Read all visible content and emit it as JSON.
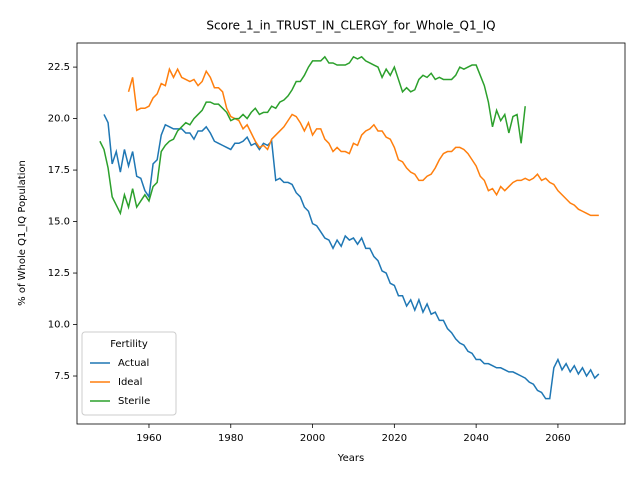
{
  "chart_data": {
    "type": "line",
    "title": "Score_1_in_TRUST_IN_CLERGY_for_Whole_Q1_IQ",
    "x_label": "Years",
    "y_label": "% of Whole Q1_IQ Population",
    "legend_title": "Fertility",
    "legend_position": "lower left",
    "grid": false,
    "x": [
      1948,
      1949,
      1950,
      1951,
      1952,
      1953,
      1954,
      1955,
      1956,
      1957,
      1958,
      1959,
      1960,
      1961,
      1962,
      1963,
      1964,
      1965,
      1966,
      1967,
      1968,
      1969,
      1970,
      1971,
      1972,
      1973,
      1974,
      1975,
      1976,
      1977,
      1978,
      1979,
      1980,
      1981,
      1982,
      1983,
      1984,
      1985,
      1986,
      1987,
      1988,
      1989,
      1990,
      1991,
      1992,
      1993,
      1994,
      1995,
      1996,
      1997,
      1998,
      1999,
      2000,
      2001,
      2002,
      2003,
      2004,
      2005,
      2006,
      2007,
      2008,
      2009,
      2010,
      2011,
      2012,
      2013,
      2014,
      2015,
      2016,
      2017,
      2018,
      2019,
      2020,
      2021,
      2022,
      2023,
      2024,
      2025,
      2026,
      2027,
      2028,
      2029,
      2030,
      2031,
      2032,
      2033,
      2034,
      2035,
      2036,
      2037,
      2038,
      2039,
      2040,
      2041,
      2042,
      2043,
      2044,
      2045,
      2046,
      2047,
      2048,
      2049,
      2050,
      2051,
      2052,
      2053,
      2054,
      2055,
      2056,
      2057,
      2058,
      2059,
      2060,
      2061,
      2062,
      2063,
      2064,
      2065,
      2066,
      2067,
      2068,
      2069,
      2070
    ],
    "xlim": [
      1942.4,
      2076.4
    ],
    "xticks": [
      1960,
      1980,
      2000,
      2020,
      2040,
      2060
    ],
    "ylim": [
      5.17,
      23.67
    ],
    "yticks": [
      {
        "value": 7.5,
        "label": "7.5"
      },
      {
        "value": 10,
        "label": "10.0"
      },
      {
        "value": 12.5,
        "label": "12.5"
      },
      {
        "value": 15,
        "label": "15.0"
      },
      {
        "value": 17.5,
        "label": "17.5"
      },
      {
        "value": 20,
        "label": "20.0"
      },
      {
        "value": 22.5,
        "label": "22.5"
      }
    ],
    "series": [
      {
        "name": "Actual",
        "color": "#1f77b4",
        "values": [
          null,
          20.2,
          19.8,
          17.8,
          18.4,
          17.4,
          18.5,
          17.7,
          18.4,
          17.2,
          17.1,
          16.5,
          16.2,
          17.8,
          18.0,
          19.2,
          19.7,
          19.6,
          19.5,
          19.5,
          19.5,
          19.3,
          19.3,
          19.0,
          19.4,
          19.4,
          19.6,
          19.3,
          18.9,
          18.8,
          18.7,
          18.6,
          18.5,
          18.8,
          18.8,
          18.9,
          19.1,
          18.7,
          18.8,
          18.5,
          18.8,
          18.7,
          18.9,
          17.0,
          17.1,
          16.9,
          16.9,
          16.8,
          16.4,
          16.2,
          15.7,
          15.5,
          14.9,
          14.8,
          14.5,
          14.2,
          14.1,
          13.7,
          14.1,
          13.8,
          14.3,
          14.1,
          14.2,
          13.9,
          14.2,
          13.7,
          13.7,
          13.3,
          13.1,
          12.6,
          12.5,
          12.0,
          11.9,
          11.4,
          11.4,
          10.9,
          11.2,
          10.7,
          11.2,
          10.6,
          11.0,
          10.5,
          10.6,
          10.2,
          10.2,
          9.8,
          9.6,
          9.3,
          9.1,
          9.0,
          8.7,
          8.6,
          8.3,
          8.3,
          8.1,
          8.1,
          8.0,
          7.9,
          7.9,
          7.8,
          7.7,
          7.7,
          7.6,
          7.5,
          7.4,
          7.2,
          7.1,
          6.8,
          6.7,
          6.4,
          6.4,
          7.9,
          8.3,
          7.8,
          8.1,
          7.7,
          8.0,
          7.6,
          7.9,
          7.5,
          7.8,
          7.4,
          7.6
        ]
      },
      {
        "name": "Ideal",
        "color": "#ff7f0e",
        "values": [
          null,
          null,
          null,
          null,
          null,
          null,
          null,
          21.3,
          22.0,
          20.4,
          20.5,
          20.5,
          20.6,
          21.0,
          21.2,
          21.7,
          21.6,
          22.4,
          22.0,
          22.4,
          22.0,
          21.9,
          21.8,
          21.9,
          21.6,
          21.8,
          22.3,
          22.0,
          21.5,
          21.5,
          21.3,
          20.5,
          20.1,
          20.0,
          19.9,
          19.5,
          19.7,
          19.3,
          18.9,
          18.6,
          18.7,
          18.5,
          19.0,
          19.2,
          19.4,
          19.6,
          19.9,
          20.2,
          20.1,
          19.8,
          19.4,
          19.8,
          19.2,
          19.5,
          19.5,
          19.0,
          18.8,
          18.4,
          18.6,
          18.4,
          18.4,
          18.3,
          18.8,
          18.7,
          19.2,
          19.4,
          19.5,
          19.7,
          19.4,
          19.4,
          19.1,
          19.0,
          18.6,
          18.0,
          17.9,
          17.6,
          17.4,
          17.3,
          17.0,
          17.0,
          17.2,
          17.3,
          17.6,
          18.0,
          18.3,
          18.4,
          18.4,
          18.6,
          18.6,
          18.5,
          18.3,
          18.0,
          17.7,
          17.2,
          17.0,
          16.5,
          16.6,
          16.3,
          16.7,
          16.5,
          16.7,
          16.9,
          17.0,
          17.0,
          17.1,
          17.0,
          17.1,
          17.3,
          17.0,
          17.1,
          16.9,
          16.8,
          16.5,
          16.3,
          16.1,
          15.9,
          15.8,
          15.6,
          15.5,
          15.4,
          15.3,
          15.3,
          15.3
        ]
      },
      {
        "name": "Sterile",
        "color": "#2ca02c",
        "values": [
          18.9,
          18.5,
          17.6,
          16.2,
          15.8,
          15.4,
          16.3,
          15.7,
          16.6,
          15.7,
          16.0,
          16.3,
          16.0,
          16.7,
          16.9,
          18.4,
          18.7,
          18.9,
          19.0,
          19.4,
          19.6,
          19.8,
          19.7,
          20.0,
          20.2,
          20.4,
          20.8,
          20.8,
          20.7,
          20.7,
          20.5,
          20.3,
          19.9,
          20.0,
          20.0,
          20.2,
          20.0,
          20.3,
          20.5,
          20.2,
          20.3,
          20.3,
          20.6,
          20.5,
          20.8,
          20.9,
          21.1,
          21.4,
          21.8,
          21.8,
          22.1,
          22.5,
          22.8,
          22.8,
          22.8,
          23.0,
          22.7,
          22.7,
          22.6,
          22.6,
          22.6,
          22.7,
          23.0,
          22.9,
          23.0,
          22.8,
          22.7,
          22.6,
          22.5,
          22.0,
          22.4,
          22.1,
          22.5,
          21.9,
          21.3,
          21.5,
          21.3,
          21.4,
          21.9,
          22.1,
          22.0,
          22.2,
          21.9,
          22.0,
          21.9,
          21.9,
          21.9,
          22.1,
          22.5,
          22.4,
          22.5,
          22.6,
          22.6,
          22.1,
          21.6,
          20.8,
          19.6,
          20.4,
          19.9,
          20.2,
          19.3,
          20.1,
          20.2,
          18.8,
          20.6,
          null,
          null,
          null,
          null,
          null,
          null,
          null,
          null,
          null,
          null,
          null,
          null,
          null,
          null,
          null,
          null,
          null,
          null
        ]
      }
    ]
  }
}
